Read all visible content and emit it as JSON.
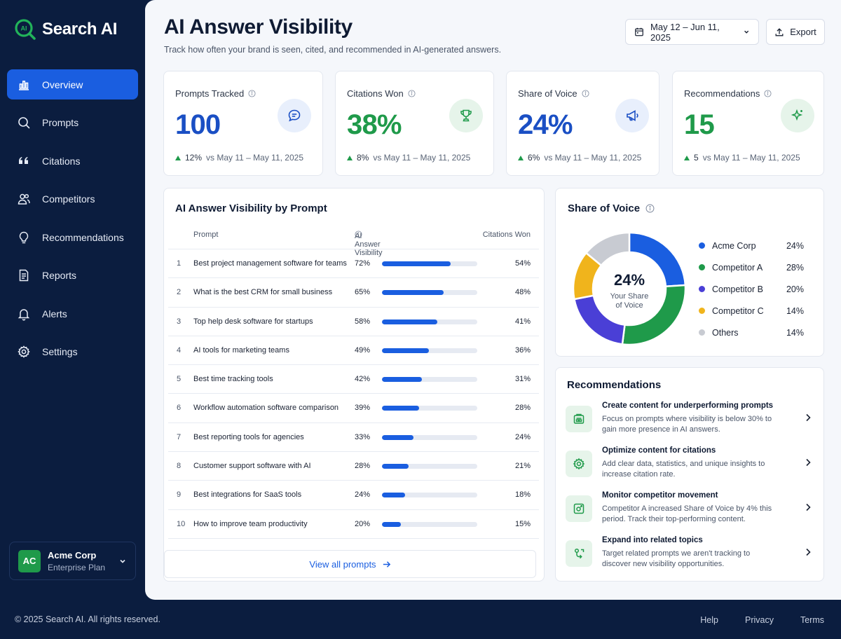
{
  "app": {
    "name": "Search AI"
  },
  "sidebar": {
    "items": [
      {
        "label": "Overview",
        "icon": "chart-icon",
        "active": true
      },
      {
        "label": "Prompts",
        "icon": "search-icon"
      },
      {
        "label": "Citations",
        "icon": "quote-icon"
      },
      {
        "label": "Competitors",
        "icon": "users-icon"
      },
      {
        "label": "Recommendations",
        "icon": "lightbulb-icon"
      },
      {
        "label": "Reports",
        "icon": "document-icon"
      },
      {
        "label": "Alerts",
        "icon": "bell-icon"
      },
      {
        "label": "Settings",
        "icon": "gear-icon"
      }
    ],
    "account": {
      "initials": "AC",
      "name": "Acme Corp",
      "plan": "Enterprise Plan"
    }
  },
  "header": {
    "title": "AI Answer Visibility",
    "subtitle": "Track how often your brand is seen, cited, and recommended in AI-generated answers.",
    "date_range": "May 12 – Jun 11, 2025",
    "export_label": "Export"
  },
  "kpis": [
    {
      "label": "Prompts Tracked",
      "value": "100",
      "delta": "12%",
      "compare": "vs May 11 – May 11, 2025",
      "color": "#1a4fc4",
      "icon": "chat-icon",
      "icon_bg": "#e8effc",
      "icon_color": "#1a4fc4"
    },
    {
      "label": "Citations Won",
      "value": "38%",
      "delta": "8%",
      "compare": "vs May 11 – May 11, 2025",
      "color": "#1f9a4a",
      "icon": "trophy-icon",
      "icon_bg": "#e6f4ea",
      "icon_color": "#1f9a4a"
    },
    {
      "label": "Share of Voice",
      "value": "24%",
      "delta": "6%",
      "compare": "vs May 11 – May 11, 2025",
      "color": "#1a4fc4",
      "icon": "megaphone-icon",
      "icon_bg": "#e8effc",
      "icon_color": "#1a4fc4"
    },
    {
      "label": "Recommendations",
      "value": "15",
      "delta": "5",
      "compare": "vs May 11 – May 11, 2025",
      "color": "#1f9a4a",
      "icon": "sparkle-icon",
      "icon_bg": "#e6f4ea",
      "icon_color": "#1f9a4a"
    }
  ],
  "table": {
    "title": "AI Answer Visibility by Prompt",
    "col_prompt": "Prompt",
    "col_visibility": "AI Answer Visibility",
    "col_citations": "Citations Won",
    "rows": [
      {
        "num": "1",
        "prompt": "Best project management software for teams",
        "visibility": "72%",
        "visibility_value": 72,
        "citations": "54%"
      },
      {
        "num": "2",
        "prompt": "What is the best CRM for small business",
        "visibility": "65%",
        "visibility_value": 65,
        "citations": "48%"
      },
      {
        "num": "3",
        "prompt": "Top help desk software for startups",
        "visibility": "58%",
        "visibility_value": 58,
        "citations": "41%"
      },
      {
        "num": "4",
        "prompt": "AI tools for marketing teams",
        "visibility": "49%",
        "visibility_value": 49,
        "citations": "36%"
      },
      {
        "num": "5",
        "prompt": "Best time tracking tools",
        "visibility": "42%",
        "visibility_value": 42,
        "citations": "31%"
      },
      {
        "num": "6",
        "prompt": "Workflow automation software comparison",
        "visibility": "39%",
        "visibility_value": 39,
        "citations": "28%"
      },
      {
        "num": "7",
        "prompt": "Best reporting tools for agencies",
        "visibility": "33%",
        "visibility_value": 33,
        "citations": "24%"
      },
      {
        "num": "8",
        "prompt": "Customer support software with AI",
        "visibility": "28%",
        "visibility_value": 28,
        "citations": "21%"
      },
      {
        "num": "9",
        "prompt": "Best integrations for SaaS tools",
        "visibility": "24%",
        "visibility_value": 24,
        "citations": "18%"
      },
      {
        "num": "10",
        "prompt": "How to improve team productivity",
        "visibility": "20%",
        "visibility_value": 20,
        "citations": "15%"
      }
    ],
    "view_all": "View all prompts"
  },
  "share_of_voice": {
    "title": "Share of Voice",
    "center_value": "24%",
    "center_label_1": "Your Share",
    "center_label_2": "of Voice",
    "segments": [
      {
        "name": "Acme Corp",
        "label": "24%",
        "value": 24,
        "color": "#1a5ee0"
      },
      {
        "name": "Competitor A",
        "label": "28%",
        "value": 28,
        "color": "#1f9a4a"
      },
      {
        "name": "Competitor B",
        "label": "20%",
        "value": 20,
        "color": "#4a3fd6"
      },
      {
        "name": "Competitor C",
        "label": "14%",
        "value": 14,
        "color": "#f0b41c"
      },
      {
        "name": "Others",
        "label": "14%",
        "value": 14,
        "color": "#c8cbd2"
      }
    ]
  },
  "recommendations": {
    "title": "Recommendations",
    "items": [
      {
        "title": "Create content for underperforming prompts",
        "desc": "Focus on prompts where visibility is below 30% to gain more presence in AI answers.",
        "icon": "content-icon"
      },
      {
        "title": "Optimize content for citations",
        "desc": "Add clear data, statistics, and unique insights to increase citation rate.",
        "icon": "settings-icon"
      },
      {
        "title": "Monitor competitor movement",
        "desc": "Competitor A increased Share of Voice by 4% this period. Track their top-performing content.",
        "icon": "monitor-icon"
      },
      {
        "title": "Expand into related topics",
        "desc": "Target related prompts we aren't tracking to discover new visibility opportunities.",
        "icon": "expand-icon"
      }
    ]
  },
  "footer": {
    "copyright": "© 2025 Search AI. All rights reserved.",
    "links": [
      "Help",
      "Privacy",
      "Terms"
    ]
  }
}
